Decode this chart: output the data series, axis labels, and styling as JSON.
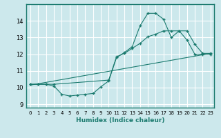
{
  "background_color": "#cce8ec",
  "grid_color": "#ffffff",
  "line_color": "#1a7a6e",
  "xlabel": "Humidex (Indice chaleur)",
  "xlim": [
    -0.5,
    23.5
  ],
  "ylim": [
    8.8,
    15.0
  ],
  "yticks": [
    9,
    10,
    11,
    12,
    13,
    14
  ],
  "xticks": [
    0,
    1,
    2,
    3,
    4,
    5,
    6,
    7,
    8,
    9,
    10,
    11,
    12,
    13,
    14,
    15,
    16,
    17,
    18,
    19,
    20,
    21,
    22,
    23
  ],
  "series1_x": [
    0,
    1,
    2,
    3,
    4,
    5,
    6,
    7,
    8,
    9,
    10,
    11,
    12,
    13,
    14,
    15,
    16,
    17,
    18,
    19,
    20,
    21,
    22,
    23
  ],
  "series1_y": [
    10.2,
    10.2,
    10.2,
    10.1,
    9.6,
    9.5,
    9.55,
    9.6,
    9.65,
    10.05,
    10.4,
    11.8,
    12.1,
    12.45,
    13.7,
    14.45,
    14.45,
    14.1,
    13.0,
    13.4,
    12.85,
    12.0,
    12.0,
    12.0
  ],
  "series2_x": [
    0,
    23
  ],
  "series2_y": [
    10.15,
    12.05
  ],
  "series3_x": [
    0,
    1,
    2,
    3,
    10,
    11,
    12,
    13,
    14,
    15,
    16,
    17,
    18,
    19,
    20,
    21,
    22,
    23
  ],
  "series3_y": [
    10.2,
    10.2,
    10.2,
    10.2,
    10.45,
    11.85,
    12.05,
    12.35,
    12.65,
    13.05,
    13.2,
    13.4,
    13.4,
    13.4,
    13.4,
    12.6,
    12.05,
    12.05
  ]
}
